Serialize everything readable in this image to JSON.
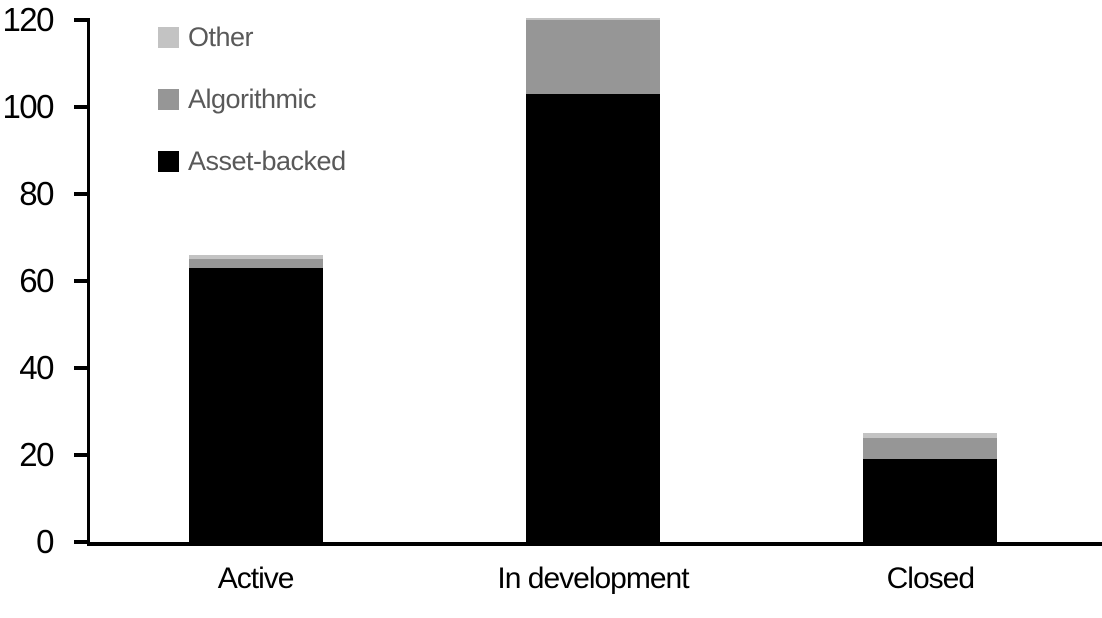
{
  "chart_data": {
    "type": "bar",
    "stacked": true,
    "title": "",
    "xlabel": "",
    "ylabel": "",
    "categories": [
      "Active",
      "In development",
      "Closed"
    ],
    "series": [
      {
        "name": "Asset-backed",
        "color": "#000000",
        "values": [
          63,
          103,
          19
        ]
      },
      {
        "name": "Algorithmic",
        "color": "#969696",
        "values": [
          2,
          17,
          5
        ]
      },
      {
        "name": "Other",
        "color": "#c3c3c3",
        "values": [
          1,
          0.5,
          1
        ]
      }
    ],
    "totals": [
      66,
      120.5,
      25
    ],
    "y_axis": {
      "min": 0,
      "max": 120,
      "tick_step": 20,
      "ticks": [
        0,
        20,
        40,
        60,
        80,
        100,
        120
      ]
    },
    "grid": false,
    "legend": {
      "position": "top-left",
      "order_top_to_bottom": [
        "Other",
        "Algorithmic",
        "Asset-backed"
      ],
      "text_color": "#595959"
    },
    "axis_color": "#000000",
    "background_color": "#ffffff"
  }
}
